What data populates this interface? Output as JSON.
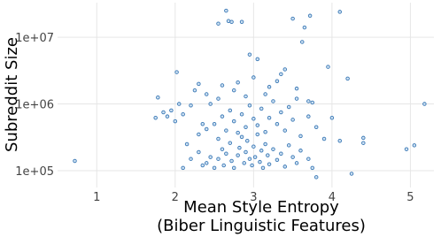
{
  "chart_data": {
    "type": "scatter",
    "xlabel": [
      "Mean Style Entropy",
      "(Biber Linguistic Features)"
    ],
    "ylabel": "Subreddit Size",
    "xlim": [
      0.5,
      5.3
    ],
    "xticks": [
      1,
      2,
      3,
      4,
      5
    ],
    "ylim": [
      56000,
      33000000
    ],
    "ylog": true,
    "yticks": [
      {
        "value": 100000,
        "label": "1e+05"
      },
      {
        "value": 1000000,
        "label": "1e+06"
      },
      {
        "value": 10000000,
        "label": "1e+07"
      }
    ],
    "grid": true,
    "color": "#3a78b5",
    "x": [
      0.72,
      1.75,
      1.78,
      1.85,
      1.95,
      2.02,
      2.05,
      2.1,
      2.2,
      2.25,
      2.3,
      2.35,
      2.4,
      2.45,
      2.65,
      2.55,
      2.68,
      2.72,
      2.85,
      3.5,
      3.72,
      4.1,
      3.65,
      3.62,
      3.05,
      2.95,
      3.4,
      3.95,
      4.2,
      5.18,
      4.95,
      5.05,
      4.4,
      4.4,
      4.25,
      3.8,
      2.4,
      2.45,
      2.5,
      2.55,
      2.6,
      2.62,
      2.65,
      2.7,
      2.72,
      2.75,
      2.8,
      2.82,
      2.85,
      2.88,
      2.9,
      2.92,
      2.95,
      2.98,
      3.0,
      3.02,
      3.05,
      3.08,
      3.1,
      3.12,
      3.15,
      3.18,
      3.2,
      3.25,
      3.3,
      3.35,
      3.4,
      3.45,
      3.5,
      3.55,
      3.6,
      3.7,
      3.75,
      2.35,
      2.3,
      2.2,
      2.15,
      2.1,
      2.3,
      2.4,
      2.5,
      2.55,
      2.6,
      2.65,
      2.7,
      2.75,
      2.8,
      2.85,
      2.9,
      2.95,
      3.0,
      3.05,
      3.1,
      3.15,
      3.2,
      3.25,
      3.3,
      3.35,
      3.4,
      3.45,
      3.5,
      3.6,
      3.7,
      3.8,
      3.9,
      4.0,
      4.1,
      3.55,
      3.15,
      2.9,
      2.75,
      2.55,
      2.0,
      1.9,
      2.8,
      3.0,
      3.2,
      3.35,
      3.55,
      3.7,
      3.3,
      2.6,
      3.75
    ],
    "values": [
      140000,
      620000,
      1250000,
      750000,
      800000,
      3000000,
      1000000,
      700000,
      950000,
      1600000,
      2000000,
      500000,
      1400000,
      1000000,
      25000000,
      16000000,
      17500000,
      17000000,
      17000000,
      19000000,
      21000000,
      24000000,
      14000000,
      8500000,
      4700000,
      5500000,
      3300000,
      3600000,
      2400000,
      1000000,
      210000,
      240000,
      260000,
      310000,
      90000,
      80000,
      130000,
      160000,
      110000,
      150000,
      210000,
      120000,
      180000,
      260000,
      140000,
      110000,
      170000,
      220000,
      320000,
      130000,
      190000,
      280000,
      150000,
      120000,
      230000,
      160000,
      350000,
      135000,
      200000,
      110000,
      250000,
      170000,
      125000,
      210000,
      145000,
      180000,
      115000,
      240000,
      160000,
      130000,
      200000,
      150000,
      110000,
      120000,
      190000,
      150000,
      250000,
      110000,
      350000,
      420000,
      500000,
      300000,
      650000,
      400000,
      800000,
      550000,
      370000,
      700000,
      450000,
      950000,
      600000,
      480000,
      850000,
      380000,
      620000,
      1100000,
      500000,
      750000,
      400000,
      900000,
      580000,
      330000,
      650000,
      450000,
      300000,
      620000,
      280000,
      1200000,
      1400000,
      1300000,
      1600000,
      1200000,
      550000,
      650000,
      2100000,
      2500000,
      1800000,
      2800000,
      1700000,
      1100000,
      2200000,
      1900000,
      1050000
    ]
  }
}
